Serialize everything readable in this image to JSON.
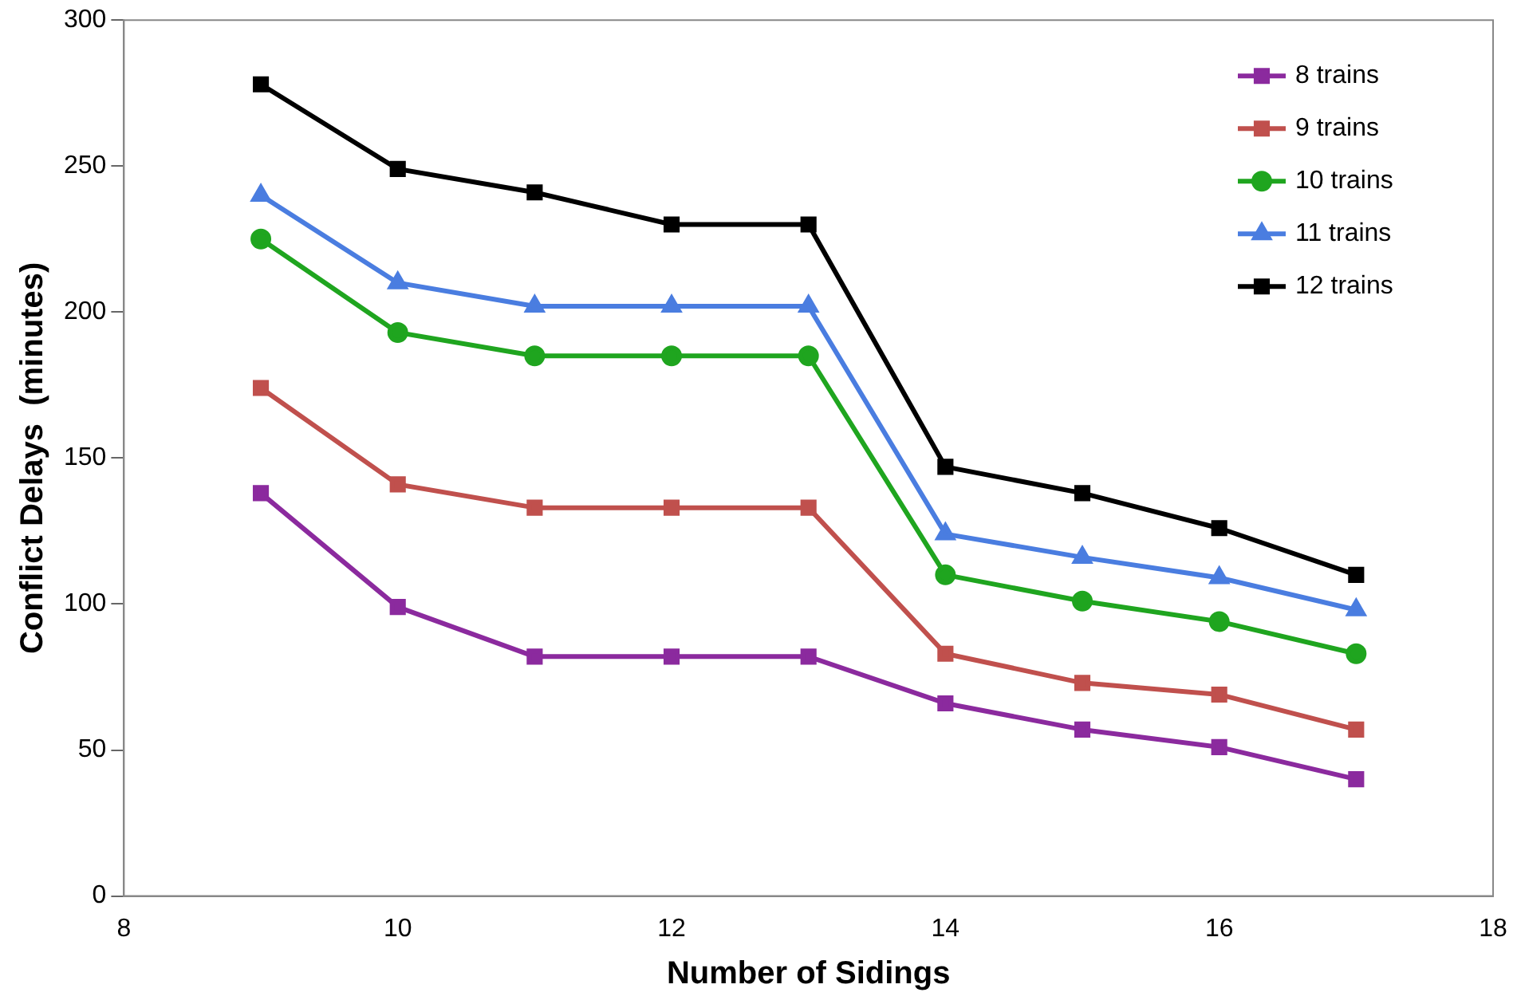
{
  "chart_data": {
    "type": "line",
    "xlabel": "Number of Sidings",
    "ylabel": "Conflict Delays  (minutes)",
    "x": [
      9,
      10,
      11,
      12,
      13,
      14,
      15,
      16,
      17
    ],
    "xlim": [
      8,
      18
    ],
    "xticks": [
      8,
      10,
      12,
      14,
      16,
      18
    ],
    "ylim": [
      0,
      300
    ],
    "yticks": [
      0,
      50,
      100,
      150,
      200,
      250,
      300
    ],
    "grid": false,
    "legend": "top right",
    "series": [
      {
        "name": "8 trains",
        "color": "#8b2a9e",
        "marker": "square",
        "values": [
          138,
          99,
          82,
          82,
          82,
          66,
          57,
          51,
          40
        ]
      },
      {
        "name": "9 trains",
        "color": "#c0504d",
        "marker": "square",
        "values": [
          174,
          141,
          133,
          133,
          133,
          83,
          73,
          69,
          57
        ]
      },
      {
        "name": "10 trains",
        "color": "#1fa51f",
        "marker": "circle",
        "values": [
          225,
          193,
          185,
          185,
          185,
          110,
          101,
          94,
          83
        ]
      },
      {
        "name": "11 trains",
        "color": "#4a7de0",
        "marker": "triangle",
        "values": [
          240,
          210,
          202,
          202,
          202,
          124,
          116,
          109,
          98
        ]
      },
      {
        "name": "12 trains",
        "color": "#000000",
        "marker": "square",
        "values": [
          278,
          249,
          241,
          230,
          230,
          147,
          138,
          126,
          110
        ]
      }
    ]
  }
}
